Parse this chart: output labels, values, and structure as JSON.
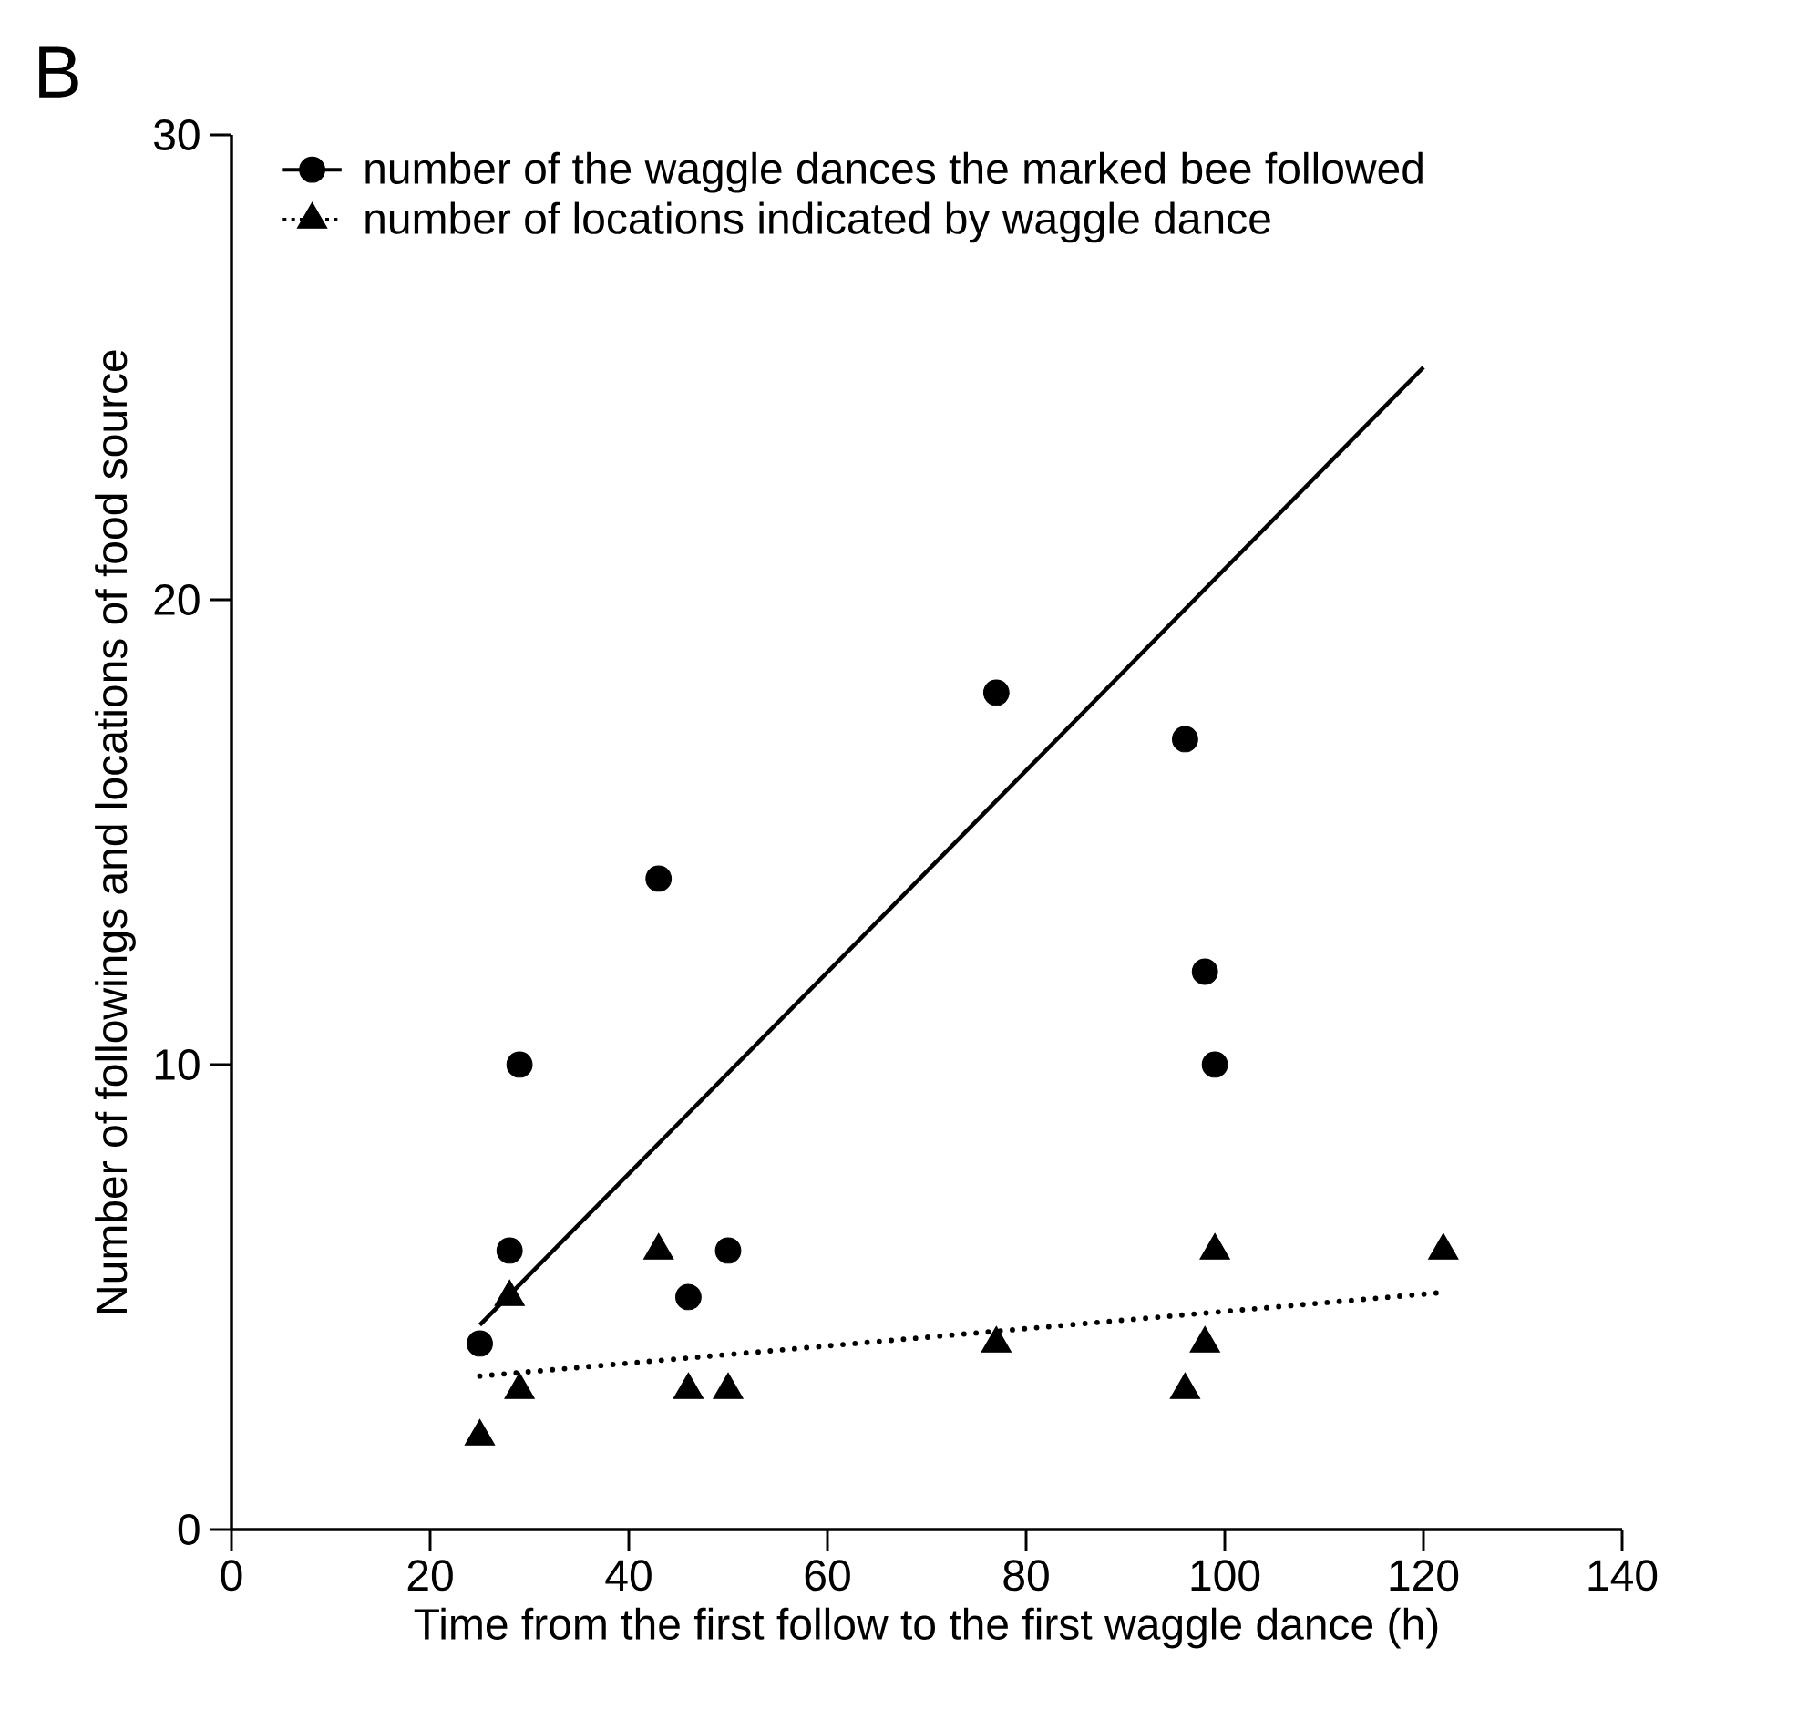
{
  "chart_data": {
    "type": "scatter",
    "title": "B",
    "xlabel": "Time from the first follow to the first waggle dance (h)",
    "ylabel": "Number of followings and locations of food source",
    "xlim": [
      0,
      140
    ],
    "ylim": [
      0,
      30
    ],
    "xticks": [
      0,
      20,
      40,
      60,
      80,
      100,
      120,
      140
    ],
    "yticks": [
      0,
      10,
      20,
      30
    ],
    "legend": "top left",
    "series": [
      {
        "name": "number of the waggle dances the marked bee followed",
        "color": "#000000",
        "marker": "circle",
        "line_style": "solid",
        "x": [
          25,
          28,
          29,
          43,
          46,
          50,
          77,
          96,
          98,
          99
        ],
        "values": [
          4,
          6,
          10,
          14,
          5,
          6,
          18,
          17,
          12,
          10
        ]
      },
      {
        "name": "number of locations indicated by waggle dance",
        "color": "#000000",
        "marker": "triangle",
        "line_style": "dotted",
        "x": [
          25,
          28,
          29,
          43,
          46,
          50,
          77,
          96,
          98,
          99,
          122
        ],
        "values": [
          2,
          5,
          3,
          6,
          3,
          3,
          4,
          3,
          4,
          6,
          6
        ]
      },
      {
        "type": "line",
        "color": "#000000",
        "line_style": "solid",
        "x": [
          25,
          120
        ],
        "values": [
          4.4,
          25
        ]
      },
      {
        "type": "line",
        "color": "#000000",
        "line_style": "dotted",
        "x": [
          25,
          122
        ],
        "values": [
          3.3,
          5.1
        ]
      }
    ]
  }
}
